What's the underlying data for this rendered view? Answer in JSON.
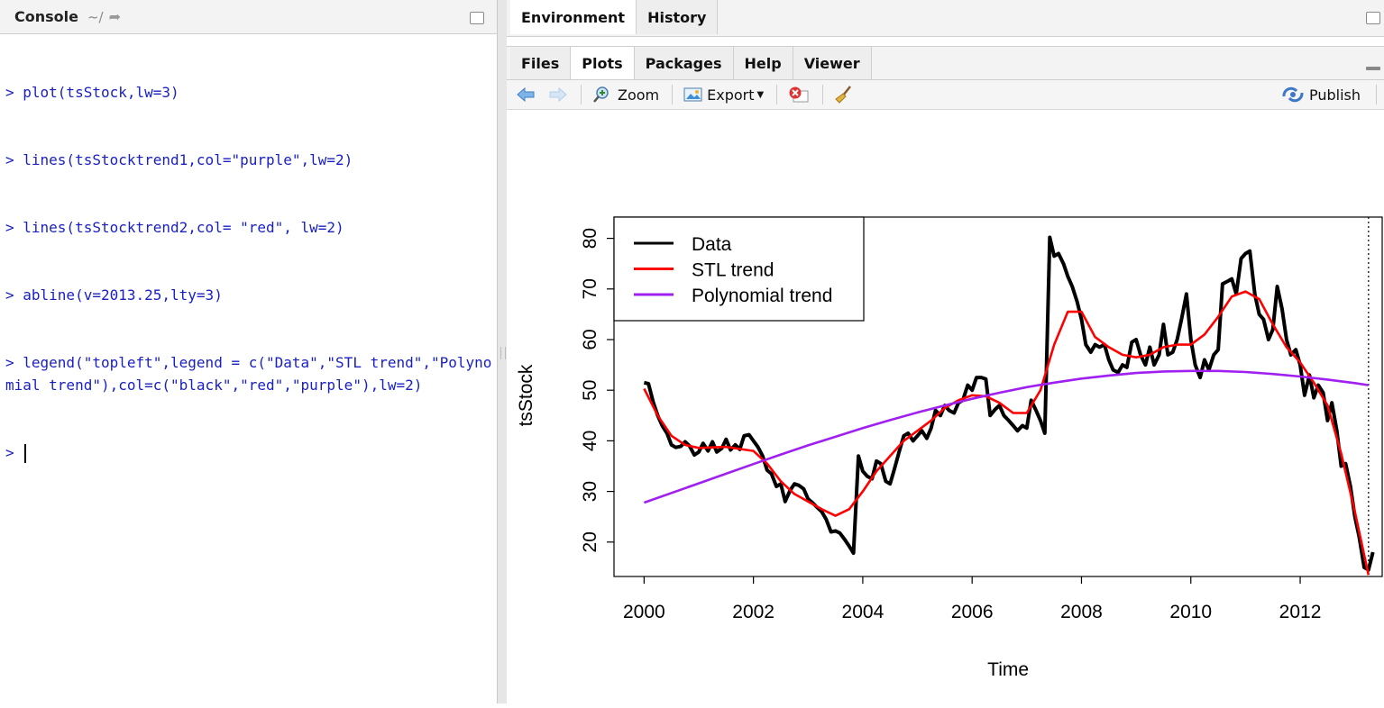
{
  "console": {
    "title": "Console",
    "path": "~/",
    "lines": [
      "> plot(tsStock,lw=3)",
      "> lines(tsStocktrend1,col=\"purple\",lw=2)",
      "> lines(tsStocktrend2,col= \"red\", lw=2)",
      "> abline(v=2013.25,lty=3)",
      "> legend(\"topleft\",legend = c(\"Data\",\"STL trend\",\"Polynomial trend\"),col=c(\"black\",\"red\",\"purple\"),lw=2)",
      ">"
    ]
  },
  "top_tabs": [
    "Environment",
    "History"
  ],
  "bottom_tabs": [
    "Files",
    "Plots",
    "Packages",
    "Help",
    "Viewer"
  ],
  "toolbar": {
    "zoom_label": "Zoom",
    "export_label": "Export",
    "publish_label": "Publish"
  },
  "colors": {
    "console_text": "#1a21c3",
    "data_series": "#000000",
    "stl_series": "#ff0000",
    "poly_series": "#a020f0"
  },
  "chart_data": {
    "type": "line",
    "xlabel": "Time",
    "ylabel": "tsStock",
    "xlim": [
      2000,
      2013.25
    ],
    "ylim": [
      14,
      82
    ],
    "xticks": [
      2000,
      2002,
      2004,
      2006,
      2008,
      2010,
      2012
    ],
    "yticks": [
      20,
      30,
      40,
      50,
      60,
      70,
      80
    ],
    "legend_position": "top-left",
    "vline": 2013.25,
    "series": [
      {
        "name": "Data",
        "color": "#000000",
        "points": [
          [
            2000.0,
            51.5
          ],
          [
            2000.08,
            51.3
          ],
          [
            2000.17,
            47.5
          ],
          [
            2000.25,
            45.0
          ],
          [
            2000.33,
            43.0
          ],
          [
            2000.42,
            41.5
          ],
          [
            2000.5,
            39.2
          ],
          [
            2000.58,
            38.7
          ],
          [
            2000.67,
            38.9
          ],
          [
            2000.75,
            39.8
          ],
          [
            2000.83,
            39.0
          ],
          [
            2000.92,
            37.2
          ],
          [
            2001.0,
            37.8
          ],
          [
            2001.08,
            39.5
          ],
          [
            2001.17,
            38.0
          ],
          [
            2001.25,
            39.8
          ],
          [
            2001.33,
            37.8
          ],
          [
            2001.42,
            38.5
          ],
          [
            2001.5,
            40.3
          ],
          [
            2001.58,
            38.2
          ],
          [
            2001.67,
            39.2
          ],
          [
            2001.75,
            38.3
          ],
          [
            2001.83,
            41.0
          ],
          [
            2001.92,
            41.2
          ],
          [
            2002.0,
            40.0
          ],
          [
            2002.08,
            38.8
          ],
          [
            2002.17,
            37.0
          ],
          [
            2002.25,
            34.2
          ],
          [
            2002.33,
            33.5
          ],
          [
            2002.42,
            31.0
          ],
          [
            2002.5,
            31.5
          ],
          [
            2002.58,
            28.0
          ],
          [
            2002.67,
            30.2
          ],
          [
            2002.75,
            31.5
          ],
          [
            2002.83,
            31.2
          ],
          [
            2002.92,
            30.5
          ],
          [
            2003.0,
            28.5
          ],
          [
            2003.08,
            27.8
          ],
          [
            2003.17,
            26.8
          ],
          [
            2003.25,
            26.0
          ],
          [
            2003.33,
            24.5
          ],
          [
            2003.42,
            22.0
          ],
          [
            2003.5,
            22.2
          ],
          [
            2003.58,
            21.8
          ],
          [
            2003.67,
            20.5
          ],
          [
            2003.75,
            19.2
          ],
          [
            2003.83,
            17.8
          ],
          [
            2003.92,
            37.0
          ],
          [
            2004.0,
            34.0
          ],
          [
            2004.08,
            33.0
          ],
          [
            2004.17,
            32.5
          ],
          [
            2004.25,
            36.0
          ],
          [
            2004.33,
            35.5
          ],
          [
            2004.42,
            32.0
          ],
          [
            2004.5,
            31.5
          ],
          [
            2004.58,
            34.5
          ],
          [
            2004.67,
            38.0
          ],
          [
            2004.75,
            41.0
          ],
          [
            2004.83,
            41.5
          ],
          [
            2004.92,
            40.0
          ],
          [
            2005.0,
            41.0
          ],
          [
            2005.08,
            42.0
          ],
          [
            2005.17,
            40.5
          ],
          [
            2005.25,
            42.5
          ],
          [
            2005.33,
            46.0
          ],
          [
            2005.42,
            45.0
          ],
          [
            2005.5,
            47.0
          ],
          [
            2005.58,
            46.0
          ],
          [
            2005.67,
            45.5
          ],
          [
            2005.75,
            47.5
          ],
          [
            2005.83,
            48.0
          ],
          [
            2005.92,
            51.0
          ],
          [
            2006.0,
            50.0
          ],
          [
            2006.08,
            52.5
          ],
          [
            2006.17,
            52.5
          ],
          [
            2006.25,
            52.2
          ],
          [
            2006.33,
            45.0
          ],
          [
            2006.42,
            46.2
          ],
          [
            2006.5,
            47.0
          ],
          [
            2006.58,
            45.0
          ],
          [
            2006.67,
            44.0
          ],
          [
            2006.75,
            43.0
          ],
          [
            2006.83,
            42.0
          ],
          [
            2006.92,
            43.0
          ],
          [
            2007.0,
            42.5
          ],
          [
            2007.08,
            48.0
          ],
          [
            2007.17,
            46.0
          ],
          [
            2007.25,
            44.0
          ],
          [
            2007.33,
            41.5
          ],
          [
            2007.42,
            80.2
          ],
          [
            2007.5,
            76.5
          ],
          [
            2007.58,
            77.0
          ],
          [
            2007.67,
            75.0
          ],
          [
            2007.75,
            72.5
          ],
          [
            2007.83,
            70.5
          ],
          [
            2007.92,
            67.5
          ],
          [
            2008.0,
            64.0
          ],
          [
            2008.08,
            59.0
          ],
          [
            2008.17,
            57.5
          ],
          [
            2008.25,
            59.0
          ],
          [
            2008.33,
            58.5
          ],
          [
            2008.42,
            59.0
          ],
          [
            2008.5,
            56.0
          ],
          [
            2008.58,
            54.0
          ],
          [
            2008.67,
            53.5
          ],
          [
            2008.75,
            55.0
          ],
          [
            2008.83,
            54.5
          ],
          [
            2008.92,
            59.5
          ],
          [
            2009.0,
            60.0
          ],
          [
            2009.08,
            57.0
          ],
          [
            2009.17,
            55.0
          ],
          [
            2009.25,
            58.5
          ],
          [
            2009.33,
            55.0
          ],
          [
            2009.42,
            57.0
          ],
          [
            2009.5,
            63.0
          ],
          [
            2009.58,
            57.0
          ],
          [
            2009.67,
            57.5
          ],
          [
            2009.75,
            60.0
          ],
          [
            2009.83,
            64.0
          ],
          [
            2009.92,
            69.0
          ],
          [
            2010.0,
            60.0
          ],
          [
            2010.08,
            55.0
          ],
          [
            2010.17,
            52.5
          ],
          [
            2010.25,
            56.0
          ],
          [
            2010.33,
            54.0
          ],
          [
            2010.42,
            57.0
          ],
          [
            2010.5,
            58.0
          ],
          [
            2010.58,
            71.0
          ],
          [
            2010.67,
            71.5
          ],
          [
            2010.75,
            72.0
          ],
          [
            2010.83,
            69.0
          ],
          [
            2010.92,
            76.0
          ],
          [
            2011.0,
            77.0
          ],
          [
            2011.08,
            77.5
          ],
          [
            2011.17,
            69.0
          ],
          [
            2011.25,
            65.0
          ],
          [
            2011.33,
            64.0
          ],
          [
            2011.42,
            60.0
          ],
          [
            2011.5,
            62.0
          ],
          [
            2011.58,
            70.5
          ],
          [
            2011.67,
            66.0
          ],
          [
            2011.75,
            60.0
          ],
          [
            2011.83,
            57.0
          ],
          [
            2011.92,
            58.0
          ],
          [
            2012.0,
            55.0
          ],
          [
            2012.08,
            49.0
          ],
          [
            2012.17,
            53.0
          ],
          [
            2012.25,
            48.5
          ],
          [
            2012.33,
            51.0
          ],
          [
            2012.42,
            49.5
          ],
          [
            2012.5,
            44.0
          ],
          [
            2012.58,
            47.5
          ],
          [
            2012.67,
            42.0
          ],
          [
            2012.75,
            35.0
          ],
          [
            2012.83,
            35.5
          ],
          [
            2012.92,
            31.0
          ],
          [
            2013.0,
            25.0
          ],
          [
            2013.08,
            21.0
          ],
          [
            2013.17,
            15.0
          ],
          [
            2013.25,
            14.5
          ],
          [
            2013.33,
            18.0
          ]
        ]
      },
      {
        "name": "STL trend",
        "color": "#ff0000",
        "points": [
          [
            2000.0,
            50.3
          ],
          [
            2000.25,
            45.0
          ],
          [
            2000.5,
            41.0
          ],
          [
            2000.75,
            39.2
          ],
          [
            2001.0,
            38.6
          ],
          [
            2001.5,
            38.8
          ],
          [
            2002.0,
            38.0
          ],
          [
            2002.25,
            35.5
          ],
          [
            2002.5,
            32.0
          ],
          [
            2002.75,
            29.5
          ],
          [
            2003.0,
            28.0
          ],
          [
            2003.25,
            26.5
          ],
          [
            2003.5,
            25.2
          ],
          [
            2003.75,
            26.5
          ],
          [
            2004.0,
            30.0
          ],
          [
            2004.25,
            34.0
          ],
          [
            2004.5,
            37.0
          ],
          [
            2004.75,
            40.0
          ],
          [
            2005.0,
            42.0
          ],
          [
            2005.25,
            44.0
          ],
          [
            2005.5,
            46.5
          ],
          [
            2005.75,
            48.0
          ],
          [
            2006.0,
            49.0
          ],
          [
            2006.25,
            48.8
          ],
          [
            2006.5,
            47.5
          ],
          [
            2006.75,
            45.5
          ],
          [
            2007.0,
            45.5
          ],
          [
            2007.25,
            50.0
          ],
          [
            2007.5,
            59.0
          ],
          [
            2007.75,
            65.5
          ],
          [
            2008.0,
            65.5
          ],
          [
            2008.25,
            60.5
          ],
          [
            2008.5,
            58.5
          ],
          [
            2008.75,
            57.0
          ],
          [
            2009.0,
            56.5
          ],
          [
            2009.25,
            57.0
          ],
          [
            2009.5,
            58.5
          ],
          [
            2009.75,
            59.0
          ],
          [
            2010.0,
            59.0
          ],
          [
            2010.25,
            61.0
          ],
          [
            2010.5,
            64.5
          ],
          [
            2010.75,
            68.5
          ],
          [
            2011.0,
            69.5
          ],
          [
            2011.25,
            68.0
          ],
          [
            2011.5,
            63.0
          ],
          [
            2011.75,
            58.5
          ],
          [
            2012.0,
            55.5
          ],
          [
            2012.25,
            51.5
          ],
          [
            2012.5,
            47.0
          ],
          [
            2012.75,
            37.5
          ],
          [
            2013.0,
            26.0
          ],
          [
            2013.25,
            13.5
          ]
        ]
      },
      {
        "name": "Polynomial trend",
        "color": "#a020f0",
        "points": [
          [
            2000.0,
            27.8
          ],
          [
            2000.5,
            29.7
          ],
          [
            2001.0,
            31.6
          ],
          [
            2001.5,
            33.5
          ],
          [
            2002.0,
            35.4
          ],
          [
            2002.5,
            37.3
          ],
          [
            2003.0,
            39.1
          ],
          [
            2003.5,
            40.8
          ],
          [
            2004.0,
            42.5
          ],
          [
            2004.5,
            44.1
          ],
          [
            2005.0,
            45.6
          ],
          [
            2005.5,
            47.0
          ],
          [
            2006.0,
            48.3
          ],
          [
            2006.5,
            49.5
          ],
          [
            2007.0,
            50.6
          ],
          [
            2007.5,
            51.5
          ],
          [
            2008.0,
            52.3
          ],
          [
            2008.5,
            52.9
          ],
          [
            2009.0,
            53.4
          ],
          [
            2009.5,
            53.7
          ],
          [
            2010.0,
            53.8
          ],
          [
            2010.5,
            53.8
          ],
          [
            2011.0,
            53.6
          ],
          [
            2011.5,
            53.2
          ],
          [
            2012.0,
            52.7
          ],
          [
            2012.5,
            52.1
          ],
          [
            2013.0,
            51.4
          ],
          [
            2013.25,
            51.0
          ]
        ]
      }
    ]
  }
}
